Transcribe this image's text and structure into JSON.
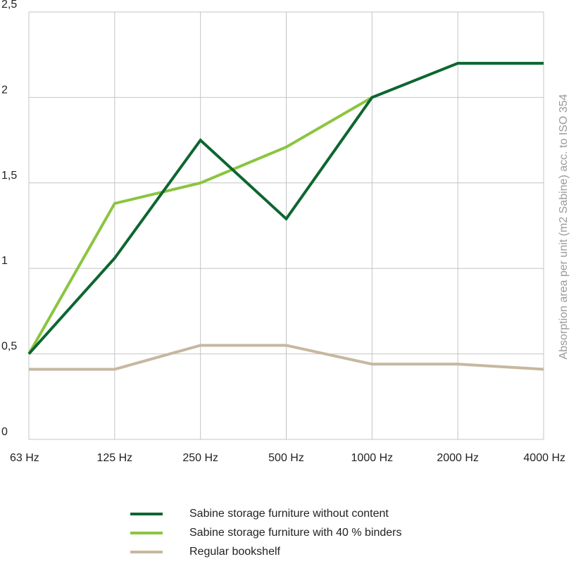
{
  "chart_data": {
    "type": "line",
    "categories": [
      "63 Hz",
      "125 Hz",
      "250 Hz",
      "500 Hz",
      "1000 Hz",
      "2000 Hz",
      "4000 Hz"
    ],
    "ylabel": "Absorption area per unit (m2 Sabine) acc. to ISO 354",
    "ylim": [
      0,
      2.5
    ],
    "yticks": [
      {
        "value": 0,
        "label": "0"
      },
      {
        "value": 0.5,
        "label": "0,5"
      },
      {
        "value": 1,
        "label": "1"
      },
      {
        "value": 1.5,
        "label": "1,5"
      },
      {
        "value": 2,
        "label": "2"
      },
      {
        "value": 2.5,
        "label": "2,5"
      }
    ],
    "grid": true,
    "legend_position": "bottom",
    "series": [
      {
        "name": "Sabine storage furniture without content",
        "color": "#0d6630",
        "values": [
          0.5,
          1.06,
          1.75,
          1.29,
          2.0,
          2.2,
          2.2
        ]
      },
      {
        "name": "Sabine storage furniture with 40 % binders",
        "color": "#8bc540",
        "values": [
          0.5,
          1.38,
          1.5,
          1.71,
          2.0,
          null,
          null
        ]
      },
      {
        "name": "Regular bookshelf",
        "color": "#c6b8a0",
        "values": [
          0.41,
          0.41,
          0.55,
          0.55,
          0.44,
          0.44,
          0.41
        ]
      }
    ]
  }
}
